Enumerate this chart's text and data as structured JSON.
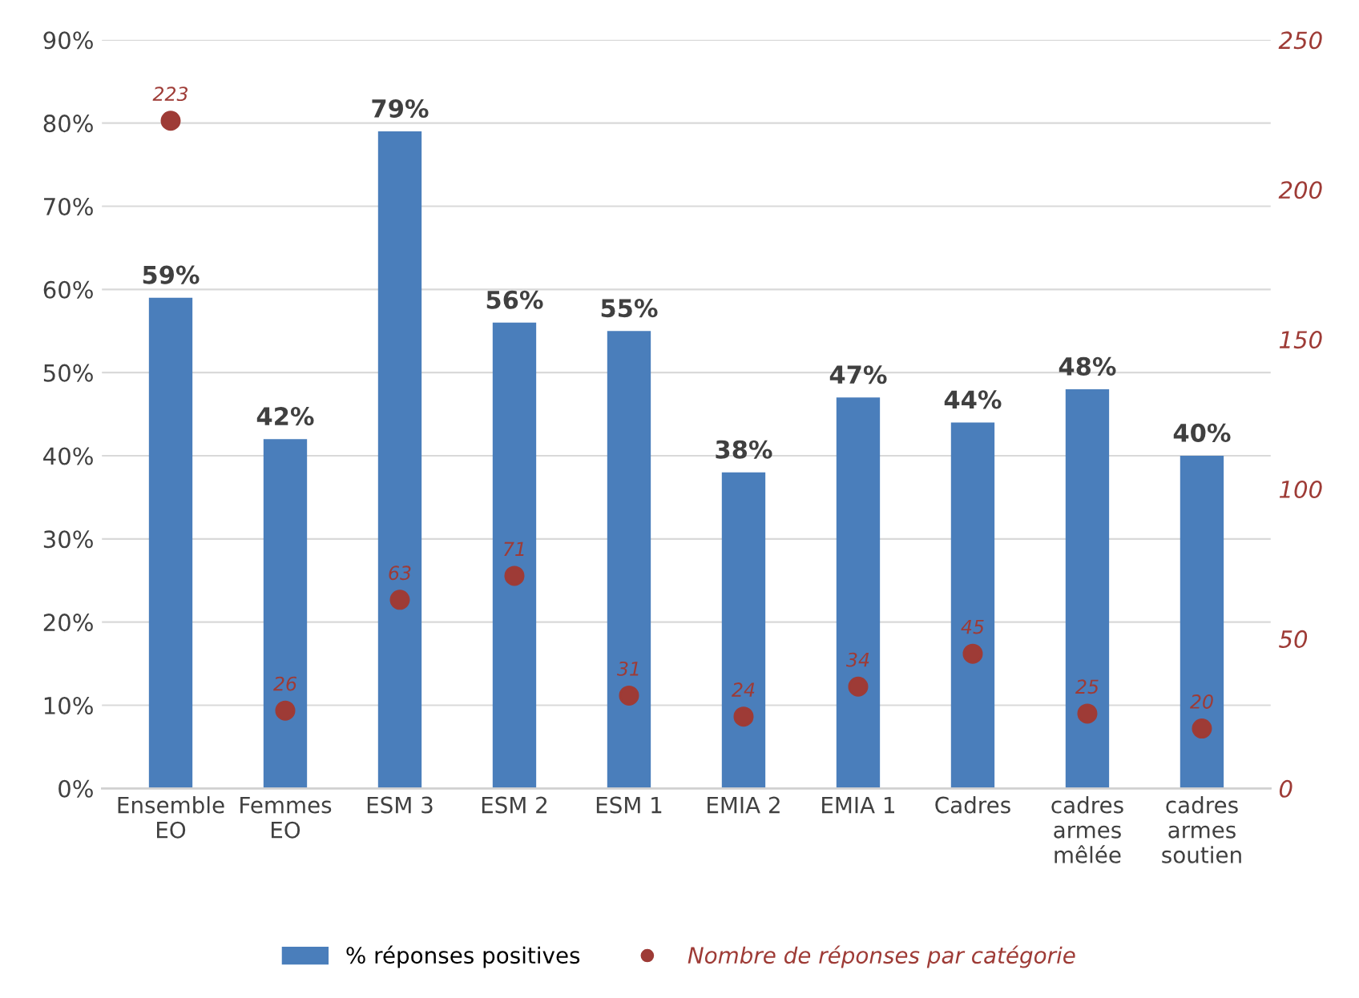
{
  "chart_data": {
    "type": "bar",
    "categories": [
      "Ensemble\nEO",
      "Femmes\nEO",
      "ESM 3",
      "ESM 2",
      "ESM 1",
      "EMIA 2",
      "EMIA 1",
      "Cadres",
      "cadres\narmes\nmêlée",
      "cadres\narmes\nsoutien"
    ],
    "series": [
      {
        "name": "% réponses positives",
        "color": "#4a7ebb",
        "values": [
          59,
          42,
          79,
          56,
          55,
          38,
          47,
          44,
          48,
          40
        ],
        "value_labels": [
          "59%",
          "42%",
          "79%",
          "56%",
          "55%",
          "38%",
          "47%",
          "44%",
          "48%",
          "40%"
        ]
      },
      {
        "name": "Nombre de réponses par catégorie",
        "type": "scatter",
        "axis": "y2",
        "marker": "circle",
        "color": "#9e3b36",
        "values": [
          223,
          26,
          63,
          71,
          31,
          24,
          34,
          45,
          25,
          20
        ],
        "value_labels": [
          "223",
          "26",
          "63",
          "71",
          "31",
          "24",
          "34",
          "45",
          "25",
          "20"
        ]
      }
    ],
    "ylim": [
      0,
      90
    ],
    "yticks": [
      {
        "value": 0,
        "label": "0%"
      },
      {
        "value": 10,
        "label": "10%"
      },
      {
        "value": 20,
        "label": "20%"
      },
      {
        "value": 30,
        "label": "30%"
      },
      {
        "value": 40,
        "label": "40%"
      },
      {
        "value": 50,
        "label": "50%"
      },
      {
        "value": 60,
        "label": "60%"
      },
      {
        "value": 70,
        "label": "70%"
      },
      {
        "value": 80,
        "label": "80%"
      },
      {
        "value": 90,
        "label": "90%"
      }
    ],
    "y2lim": [
      0,
      250
    ],
    "y2ticks": [
      0,
      50,
      100,
      150,
      200,
      250
    ],
    "grid": "y",
    "legend": "bottom"
  }
}
